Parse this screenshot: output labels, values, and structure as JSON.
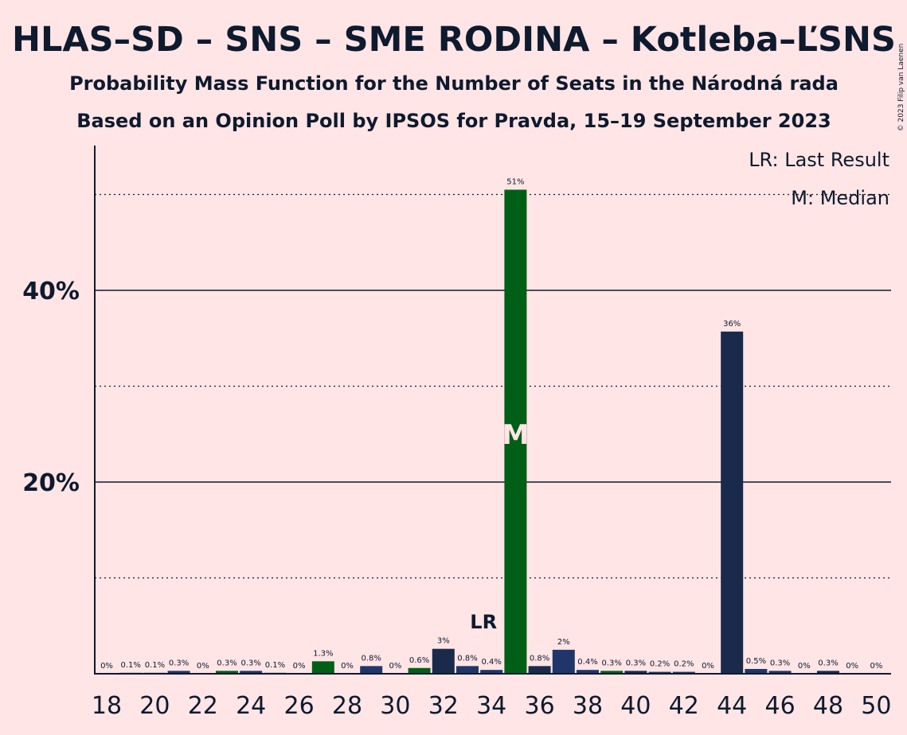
{
  "chart_data": {
    "type": "bar",
    "title": "HLAS–SD – SNS – SME RODINA – Kotleba–ĽSNS",
    "subtitle": "Probability Mass Function for the Number of Seats in the Národná rada",
    "subtitle2": "Based on an Opinion Poll by IPSOS for Pravda, 15–19 September 2023",
    "copyright": "© 2023 Filip van Laenen",
    "legend_lr": "LR: Last Result",
    "legend_m": "M: Median",
    "legend_placement": "top-right",
    "ylim": [
      0,
      55
    ],
    "ytick_values": [
      20,
      40
    ],
    "ytick_labels": [
      "20%",
      "40%"
    ],
    "dotted_gridlines": [
      10,
      30,
      50
    ],
    "solid_gridlines": [
      20,
      40
    ],
    "xtick_labels": [
      "18",
      "20",
      "22",
      "24",
      "26",
      "28",
      "30",
      "32",
      "34",
      "36",
      "38",
      "40",
      "42",
      "44",
      "46",
      "48",
      "50"
    ],
    "categories": [
      18,
      19,
      20,
      21,
      22,
      23,
      24,
      25,
      26,
      27,
      28,
      29,
      30,
      31,
      32,
      33,
      34,
      35,
      36,
      37,
      38,
      39,
      40,
      41,
      42,
      43,
      44,
      45,
      46,
      47,
      48,
      49,
      50
    ],
    "values": [
      0,
      0.1,
      0.1,
      0.3,
      0,
      0.3,
      0.3,
      0.1,
      0,
      1.3,
      0,
      0.8,
      0,
      0.6,
      2.6,
      0.8,
      0.4,
      50.5,
      0.8,
      2.5,
      0.4,
      0.3,
      0.3,
      0.2,
      0.2,
      0,
      35.7,
      0.5,
      0.3,
      0,
      0.3,
      0,
      0
    ],
    "labels": [
      "0%",
      "0.1%",
      "0.1%",
      "0.3%",
      "0%",
      "0.3%",
      "0.3%",
      "0.1%",
      "0%",
      "1.3%",
      "0%",
      "0.8%",
      "0%",
      "0.6%",
      "3%",
      "0.8%",
      "0.4%",
      "51%",
      "0.8%",
      "2%",
      "0.4%",
      "0.3%",
      "0.3%",
      "0.2%",
      "0.2%",
      "0%",
      "36%",
      "0.5%",
      "0.3%",
      "0%",
      "0.3%",
      "0%",
      "0%"
    ],
    "bar_colors": [
      "#20366A",
      "#20366A",
      "#20366A",
      "#20366A",
      "#20366A",
      "#005F17",
      "#20366A",
      "#20366A",
      "#20366A",
      "#005F17",
      "#20366A",
      "#20366A",
      "#20366A",
      "#005F17",
      "#1A2A4A",
      "#20366A",
      "#20366A",
      "#005F17",
      "#1A2A4A",
      "#20366A",
      "#20366A",
      "#005F17",
      "#1A2A4A",
      "#20366A",
      "#20366A",
      "#20366A",
      "#1A2A4A",
      "#20366A",
      "#20366A",
      "#20366A",
      "#1A2A4A",
      "#20366A",
      "#20366A"
    ],
    "last_result_seat": 34,
    "last_result_label": "LR",
    "median_seat": 35,
    "median_label": "M",
    "colors": {
      "background": "#FFE5E6",
      "text": "#0E1A2E",
      "median_marker": "#FFE5E6"
    }
  }
}
